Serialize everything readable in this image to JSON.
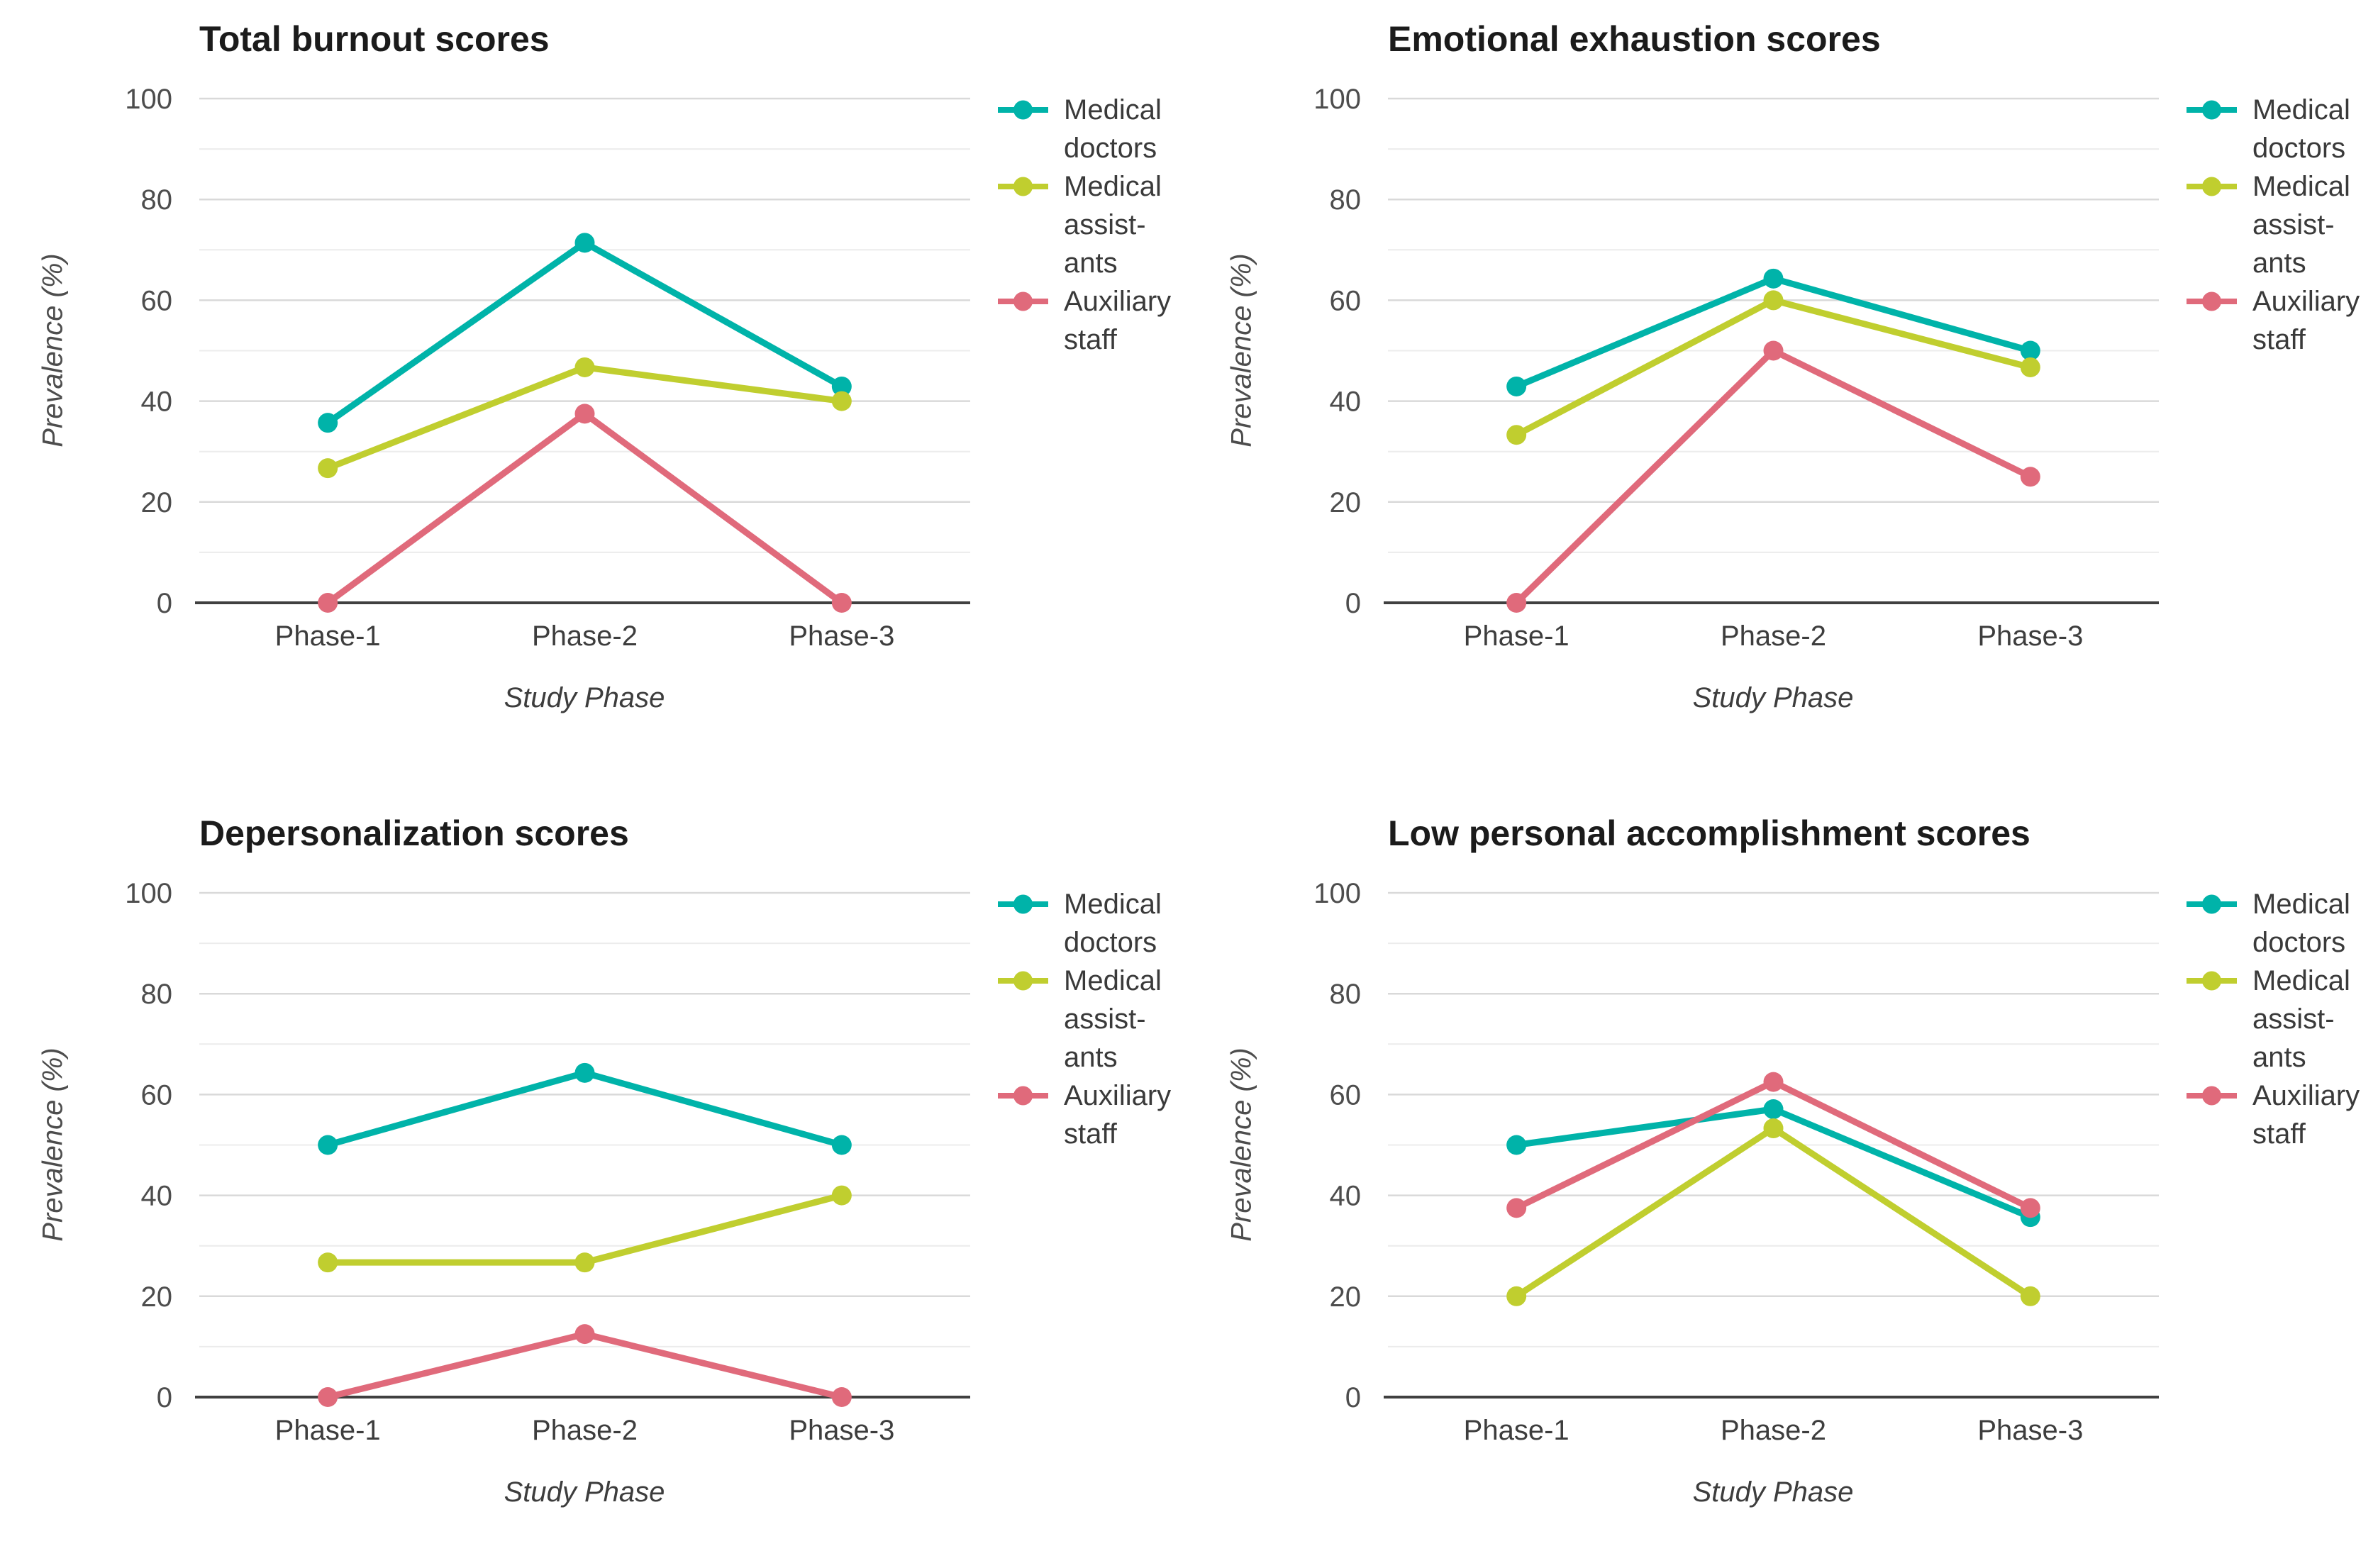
{
  "figure": {
    "background": "#FFFFFF",
    "grid_minor_color": "#ECECEC",
    "grid_major_color": "#D9D9D9",
    "axis_line_color": "#404040"
  },
  "chart_data": [
    {
      "id": "total-burnout",
      "type": "line",
      "title": "Total burnout scores",
      "xlabel": "Study Phase",
      "ylabel": "Prevalence (%)",
      "categories": [
        "Phase-1",
        "Phase-2",
        "Phase-3"
      ],
      "ylim": [
        0,
        100
      ],
      "yticks": [
        0,
        20,
        40,
        60,
        80,
        100
      ],
      "minor_grid_step": 10,
      "grid": true,
      "legend_position": "right",
      "series": [
        {
          "name": "Medical doctors",
          "label_lines": [
            "Medical",
            "doctors"
          ],
          "color": "#00B3A9",
          "values": [
            35.7,
            71.4,
            42.9
          ]
        },
        {
          "name": "Medical assistants",
          "label_lines": [
            "Medical",
            "assist-",
            "ants"
          ],
          "color": "#C0CE2F",
          "values": [
            26.7,
            46.7,
            40
          ]
        },
        {
          "name": "Auxiliary staff",
          "label_lines": [
            "Auxiliary",
            "staff"
          ],
          "color": "#E06A7B",
          "values": [
            0,
            37.5,
            0
          ]
        }
      ]
    },
    {
      "id": "emotional-exhaustion",
      "type": "line",
      "title": "Emotional exhaustion scores",
      "xlabel": "Study Phase",
      "ylabel": "Prevalence (%)",
      "categories": [
        "Phase-1",
        "Phase-2",
        "Phase-3"
      ],
      "ylim": [
        0,
        100
      ],
      "yticks": [
        0,
        20,
        40,
        60,
        80,
        100
      ],
      "minor_grid_step": 10,
      "grid": true,
      "legend_position": "right",
      "series": [
        {
          "name": "Medical doctors",
          "label_lines": [
            "Medical",
            "doctors"
          ],
          "color": "#00B3A9",
          "values": [
            42.9,
            64.3,
            50
          ]
        },
        {
          "name": "Medical assistants",
          "label_lines": [
            "Medical",
            "assist-",
            "ants"
          ],
          "color": "#C0CE2F",
          "values": [
            33.3,
            60,
            46.7
          ]
        },
        {
          "name": "Auxiliary staff",
          "label_lines": [
            "Auxiliary",
            "staff"
          ],
          "color": "#E06A7B",
          "values": [
            0,
            50,
            25
          ]
        }
      ]
    },
    {
      "id": "depersonalization",
      "type": "line",
      "title": "Depersonalization scores",
      "xlabel": "Study Phase",
      "ylabel": "Prevalence (%)",
      "categories": [
        "Phase-1",
        "Phase-2",
        "Phase-3"
      ],
      "ylim": [
        0,
        100
      ],
      "yticks": [
        0,
        20,
        40,
        60,
        80,
        100
      ],
      "minor_grid_step": 10,
      "grid": true,
      "legend_position": "right",
      "series": [
        {
          "name": "Medical doctors",
          "label_lines": [
            "Medical",
            "doctors"
          ],
          "color": "#00B3A9",
          "values": [
            50,
            64.3,
            50
          ]
        },
        {
          "name": "Medical assistants",
          "label_lines": [
            "Medical",
            "assist-",
            "ants"
          ],
          "color": "#C0CE2F",
          "values": [
            26.7,
            26.7,
            40
          ]
        },
        {
          "name": "Auxiliary staff",
          "label_lines": [
            "Auxiliary",
            "staff"
          ],
          "color": "#E06A7B",
          "values": [
            0,
            12.5,
            0
          ]
        }
      ]
    },
    {
      "id": "low-personal-accomplishment",
      "type": "line",
      "title": "Low personal accomplishment scores",
      "xlabel": "Study Phase",
      "ylabel": "Prevalence (%)",
      "categories": [
        "Phase-1",
        "Phase-2",
        "Phase-3"
      ],
      "ylim": [
        0,
        100
      ],
      "yticks": [
        0,
        20,
        40,
        60,
        80,
        100
      ],
      "minor_grid_step": 10,
      "grid": true,
      "legend_position": "right",
      "series": [
        {
          "name": "Medical doctors",
          "label_lines": [
            "Medical",
            "doctors"
          ],
          "color": "#00B3A9",
          "values": [
            50,
            57.1,
            35.7
          ]
        },
        {
          "name": "Medical assistants",
          "label_lines": [
            "Medical",
            "assist-",
            "ants"
          ],
          "color": "#C0CE2F",
          "values": [
            20,
            53.3,
            20
          ]
        },
        {
          "name": "Auxiliary staff",
          "label_lines": [
            "Auxiliary",
            "staff"
          ],
          "color": "#E06A7B",
          "values": [
            37.5,
            62.5,
            37.5
          ]
        }
      ]
    }
  ]
}
